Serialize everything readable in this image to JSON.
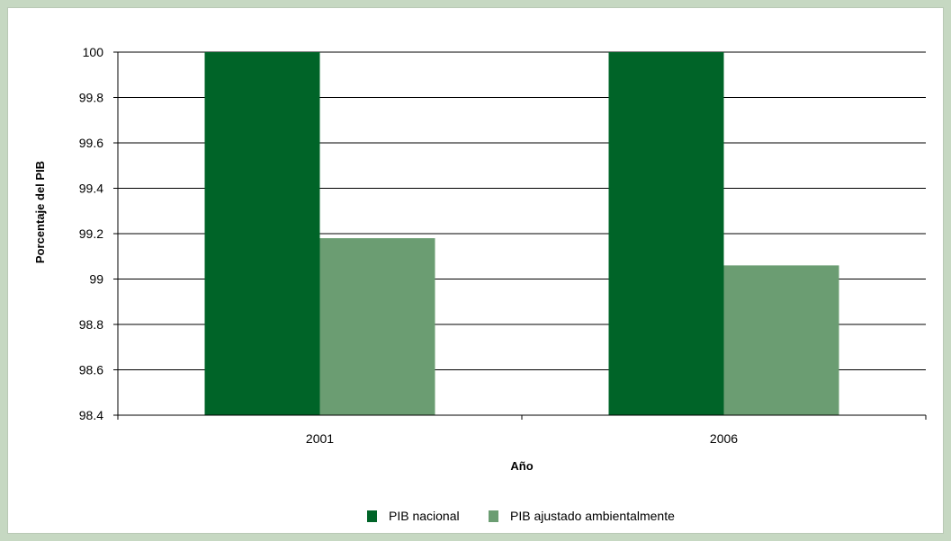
{
  "chart_data": {
    "type": "bar",
    "title": "",
    "xlabel": "Año",
    "ylabel": "Porcentaje del PIB",
    "categories": [
      "2001",
      "2006"
    ],
    "series": [
      {
        "name": "PIB nacional",
        "values": [
          100,
          100
        ],
        "color": "#006428"
      },
      {
        "name": "PIB ajustado ambientalmente",
        "values": [
          99.18,
          99.06
        ],
        "color": "#6b9d72"
      }
    ],
    "ylim": [
      98.4,
      100
    ],
    "yticks": [
      "100",
      "99.8",
      "99.6",
      "99.4",
      "99.2",
      "99",
      "98.8",
      "98.6",
      "98.4"
    ],
    "grid": true,
    "legend_position": "bottom"
  }
}
